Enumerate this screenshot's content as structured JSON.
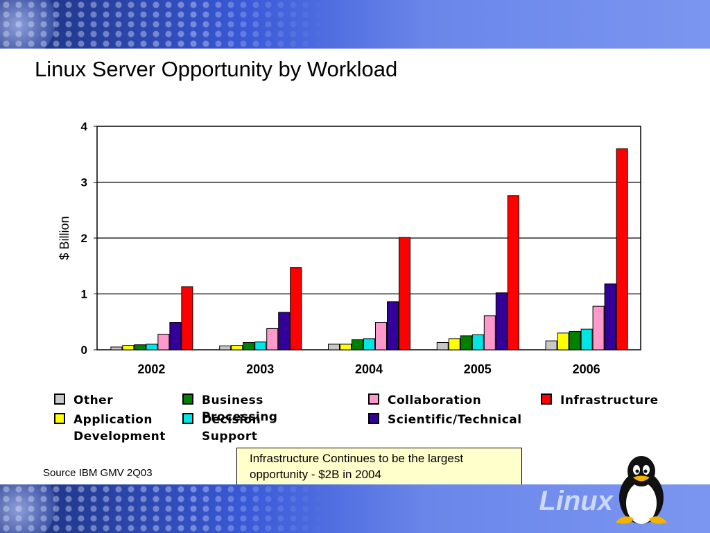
{
  "slide": {
    "title": "Linux Server Opportunity by Workload",
    "source": "Source IBM GMV 2Q03",
    "note": "Infrastructure Continues to be the largest opportunity - $2B in 2004",
    "logo_text": "Linux"
  },
  "colors": {
    "banner": "#4a6ae0",
    "other": "#c8c8c8",
    "application_development": "#ffff00",
    "business_processing": "#008000",
    "decision_support": "#00e5e5",
    "collaboration": "#ff99cc",
    "scientific_technical": "#330099",
    "infrastructure": "#ff0000"
  },
  "legend": [
    {
      "label": "Other",
      "color": "#c8c8c8"
    },
    {
      "label": "Business Processing",
      "color": "#008000"
    },
    {
      "label": "Collaboration",
      "color": "#ff99cc"
    },
    {
      "label": "Infrastructure",
      "color": "#ff0000"
    },
    {
      "label": "Application\nDevelopment",
      "color": "#ffff00"
    },
    {
      "label": "Decision Support",
      "color": "#00e5e5"
    },
    {
      "label": "Scientific/Technical",
      "color": "#330099"
    }
  ],
  "chart_data": {
    "type": "bar",
    "categories": [
      "2002",
      "2003",
      "2004",
      "2005",
      "2006"
    ],
    "ylabel": "$ Billion",
    "xlabel": "",
    "ylim": [
      0,
      4
    ],
    "yticks": [
      0,
      1,
      2,
      3,
      4
    ],
    "grid": true,
    "legend_position": "bottom",
    "series": [
      {
        "name": "Other",
        "color": "#c8c8c8",
        "values": [
          0.05,
          0.07,
          0.1,
          0.13,
          0.16
        ]
      },
      {
        "name": "Application Development",
        "color": "#ffff00",
        "values": [
          0.08,
          0.08,
          0.1,
          0.2,
          0.3
        ]
      },
      {
        "name": "Business Processing",
        "color": "#008000",
        "values": [
          0.09,
          0.13,
          0.18,
          0.25,
          0.33
        ]
      },
      {
        "name": "Decision Support",
        "color": "#00e5e5",
        "values": [
          0.1,
          0.14,
          0.2,
          0.27,
          0.37
        ]
      },
      {
        "name": "Collaboration",
        "color": "#ff99cc",
        "values": [
          0.28,
          0.38,
          0.49,
          0.61,
          0.78
        ]
      },
      {
        "name": "Scientific/Technical",
        "color": "#330099",
        "values": [
          0.49,
          0.67,
          0.86,
          1.02,
          1.18
        ]
      },
      {
        "name": "Infrastructure",
        "color": "#ff0000",
        "values": [
          1.13,
          1.47,
          2.01,
          2.76,
          3.6
        ]
      }
    ]
  }
}
